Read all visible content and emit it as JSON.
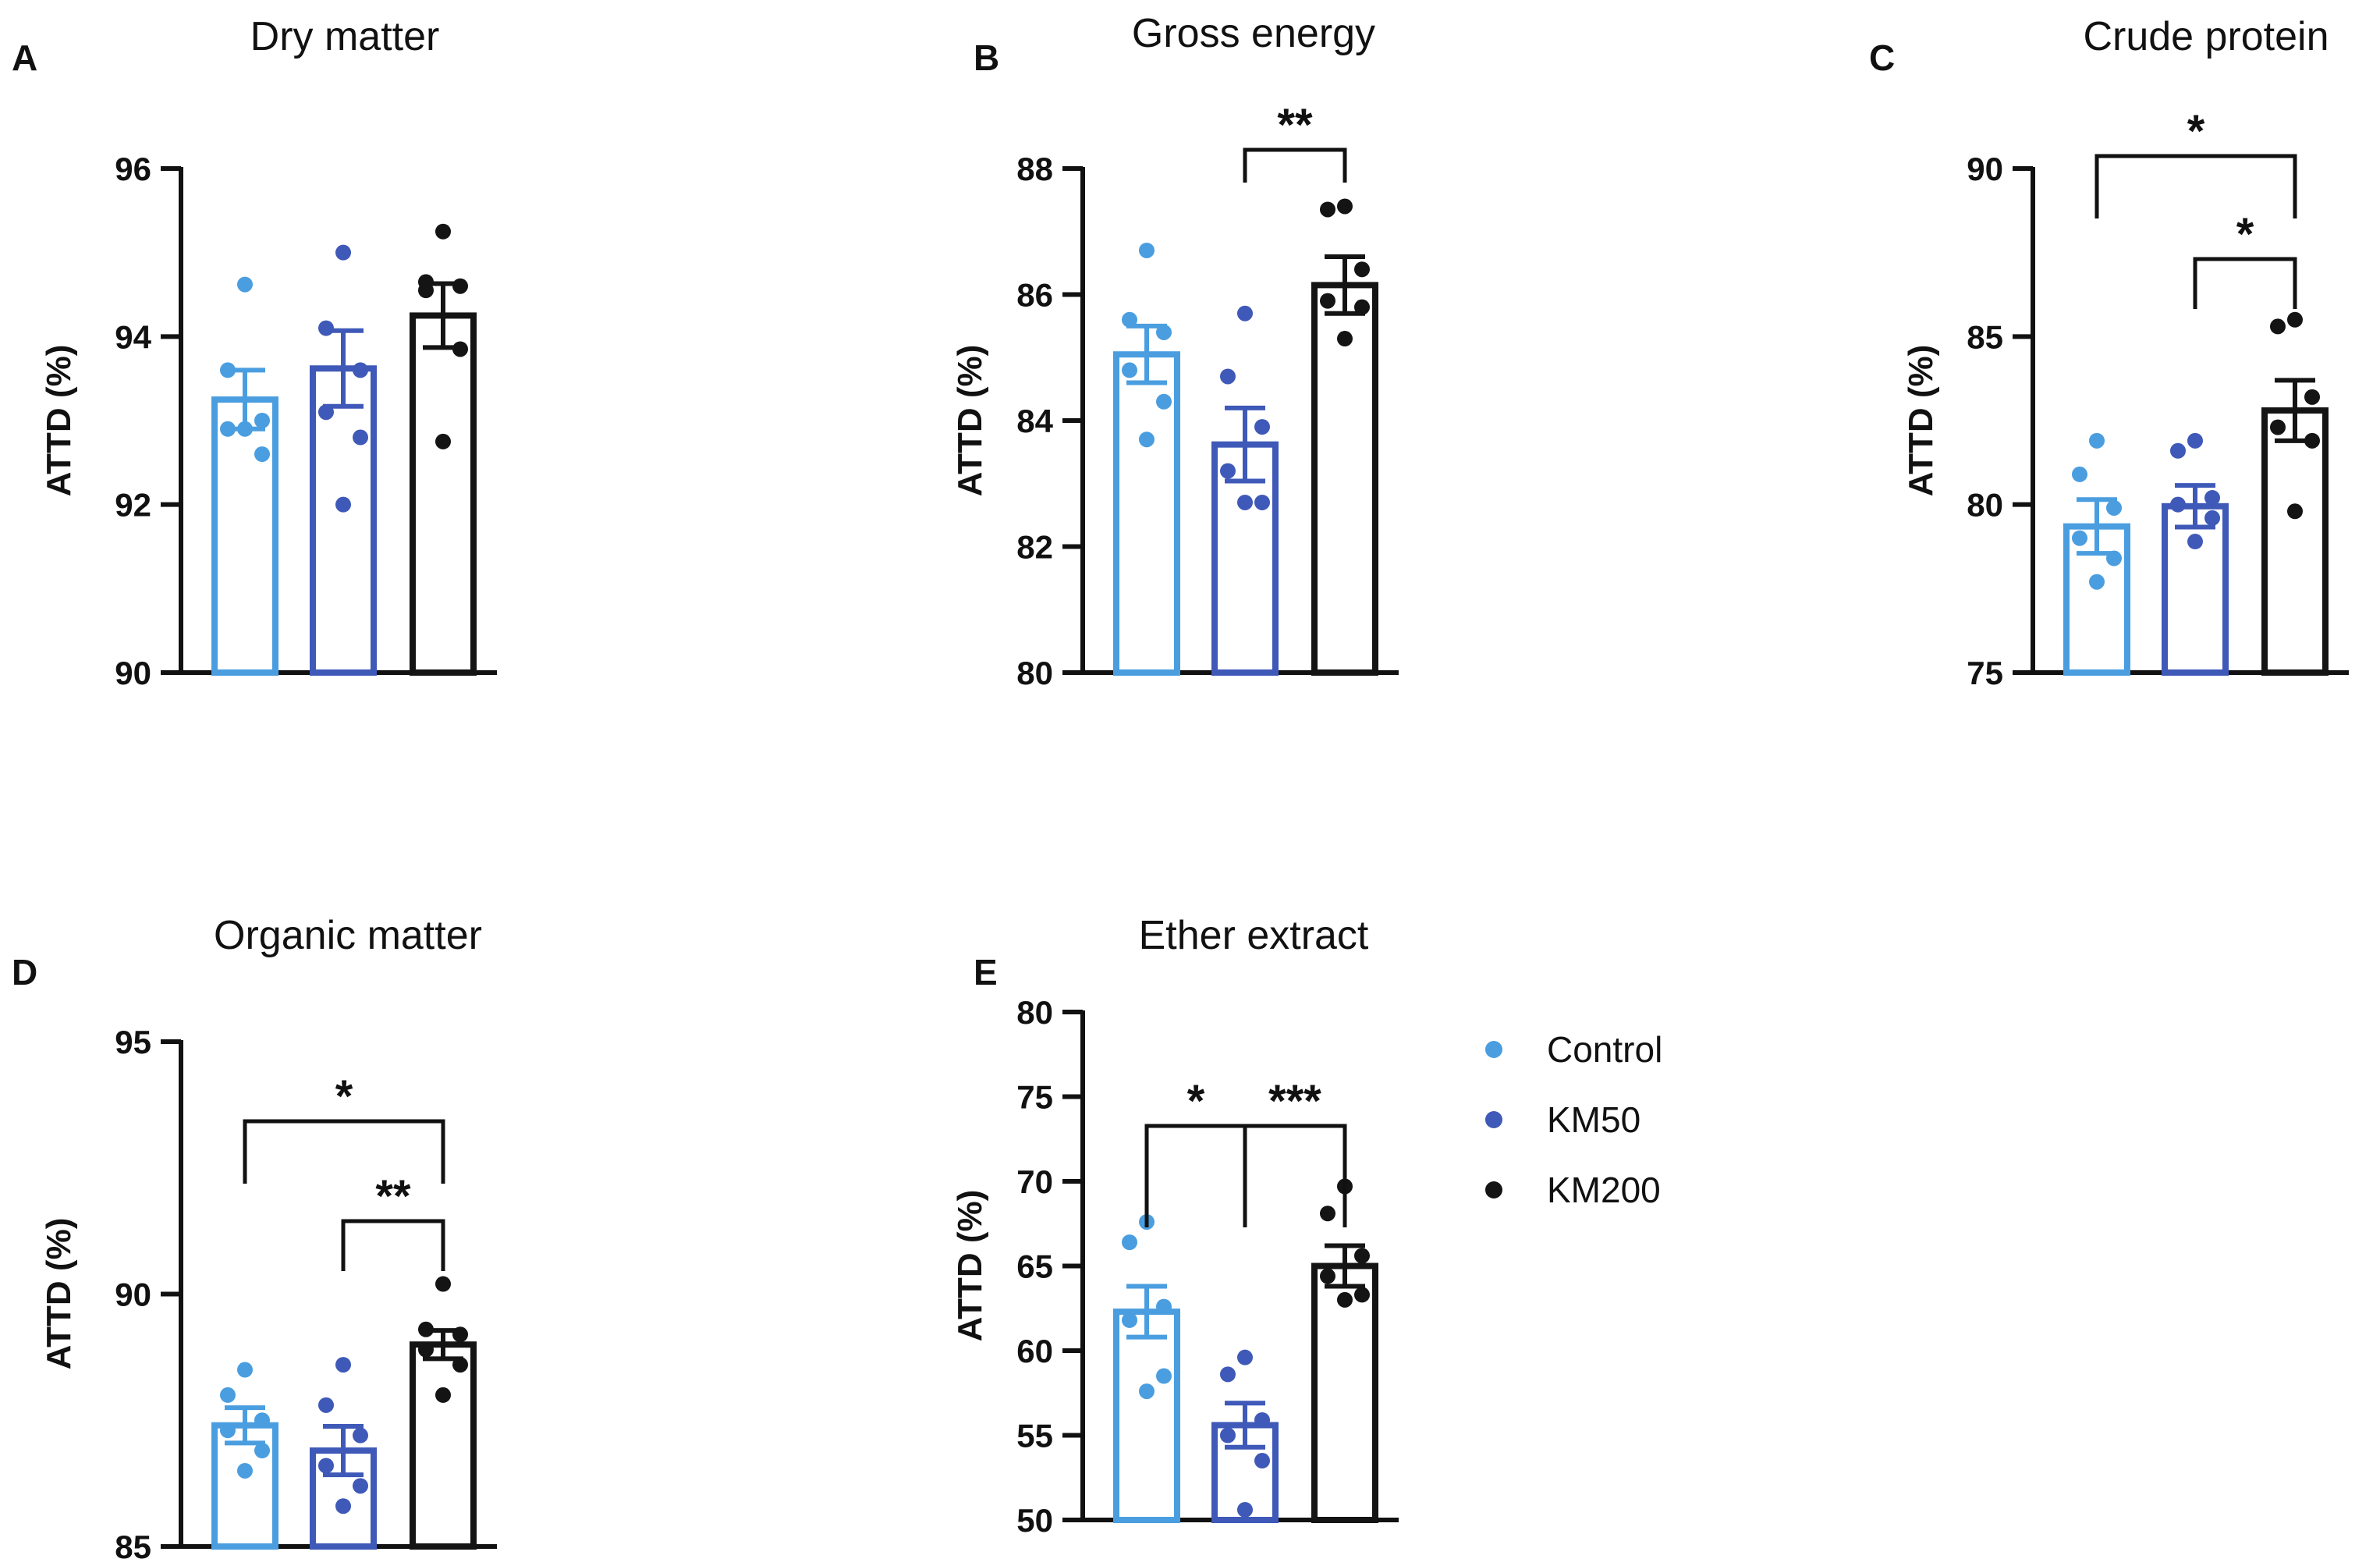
{
  "figure": {
    "legend": [
      {
        "label": "Control",
        "color": "#4a9ee0"
      },
      {
        "label": "KM50",
        "color": "#3f59b8"
      },
      {
        "label": "KM200",
        "color": "#141414"
      }
    ]
  },
  "chart_data": [
    {
      "type": "bar",
      "panel": "A",
      "title": "Dry matter",
      "ylabel": "ATTD (%)",
      "xlabel": "",
      "ylim": [
        90,
        96
      ],
      "yticks": [
        90,
        92,
        94,
        96
      ],
      "categories": [
        "Control",
        "KM50",
        "KM200"
      ],
      "values": [
        93.25,
        93.62,
        94.25
      ],
      "errors": [
        0.35,
        0.45,
        0.38
      ],
      "points": [
        [
          94.62,
          93.6,
          92.6,
          92.9,
          93.0,
          92.9
        ],
        [
          95.0,
          94.1,
          93.6,
          93.1,
          92.8,
          92.0
        ],
        [
          95.25,
          94.65,
          94.6,
          94.55,
          93.85,
          92.75
        ]
      ],
      "significance": []
    },
    {
      "type": "bar",
      "panel": "B",
      "title": "Gross energy",
      "ylabel": "ATTD (%)",
      "xlabel": "",
      "ylim": [
        80,
        88
      ],
      "yticks": [
        80,
        82,
        84,
        86,
        88
      ],
      "categories": [
        "Control",
        "KM50",
        "KM200"
      ],
      "values": [
        85.05,
        83.62,
        86.15
      ],
      "errors": [
        0.45,
        0.58,
        0.45
      ],
      "points": [
        [
          86.7,
          85.6,
          85.4,
          84.8,
          84.3,
          83.7
        ],
        [
          85.7,
          84.7,
          83.9,
          83.2,
          82.7,
          82.7
        ],
        [
          87.4,
          87.35,
          86.4,
          85.9,
          85.8,
          85.3
        ]
      ],
      "significance": [
        {
          "from": 1,
          "to": 2,
          "label": "**"
        }
      ]
    },
    {
      "type": "bar",
      "panel": "C",
      "title": "Crude protein",
      "ylabel": "ATTD (%)",
      "xlabel": "",
      "ylim": [
        75,
        90
      ],
      "yticks": [
        75,
        80,
        85,
        90
      ],
      "categories": [
        "Control",
        "KM50",
        "KM200"
      ],
      "values": [
        79.35,
        79.95,
        82.8
      ],
      "errors": [
        0.8,
        0.62,
        0.9
      ],
      "points": [
        [
          81.9,
          80.9,
          79.9,
          79.0,
          78.4,
          77.7
        ],
        [
          81.9,
          81.6,
          80.2,
          80.0,
          79.6,
          78.9
        ],
        [
          85.5,
          85.3,
          83.2,
          82.3,
          81.9,
          79.8
        ]
      ],
      "significance": [
        {
          "from": 0,
          "to": 2,
          "label": "*"
        },
        {
          "from": 1,
          "to": 2,
          "label": "*"
        }
      ]
    },
    {
      "type": "bar",
      "panel": "D",
      "title": "Organic matter",
      "ylabel": "ATTD (%)",
      "xlabel": "",
      "ylim": [
        85,
        95
      ],
      "yticks": [
        85,
        90,
        95
      ],
      "categories": [
        "Control",
        "KM50",
        "KM200"
      ],
      "values": [
        87.4,
        86.9,
        89.0
      ],
      "errors": [
        0.35,
        0.48,
        0.28
      ],
      "points": [
        [
          88.5,
          88.0,
          87.5,
          87.3,
          86.9,
          86.5
        ],
        [
          88.6,
          87.8,
          87.2,
          86.6,
          86.2,
          85.8
        ],
        [
          90.2,
          89.3,
          89.2,
          88.9,
          88.6,
          88.0
        ]
      ],
      "significance": [
        {
          "from": 0,
          "to": 2,
          "label": "*"
        },
        {
          "from": 1,
          "to": 2,
          "label": "**"
        }
      ]
    },
    {
      "type": "bar",
      "panel": "E",
      "title": "Ether extract",
      "ylabel": "ATTD (%)",
      "xlabel": "",
      "ylim": [
        50,
        80
      ],
      "yticks": [
        50,
        55,
        60,
        65,
        70,
        75,
        80
      ],
      "categories": [
        "Control",
        "KM50",
        "KM200"
      ],
      "values": [
        62.3,
        55.6,
        65.0
      ],
      "errors": [
        1.5,
        1.3,
        1.2
      ],
      "points": [
        [
          67.6,
          66.4,
          62.6,
          61.8,
          58.5,
          57.6
        ],
        [
          59.6,
          58.6,
          55.9,
          55.0,
          53.5,
          50.6
        ],
        [
          69.7,
          68.1,
          65.6,
          64.4,
          63.3,
          63.0
        ]
      ],
      "significance": [
        {
          "from": 0,
          "to": 1,
          "label": "*"
        },
        {
          "from": 1,
          "to": 2,
          "label": "***"
        }
      ]
    }
  ]
}
